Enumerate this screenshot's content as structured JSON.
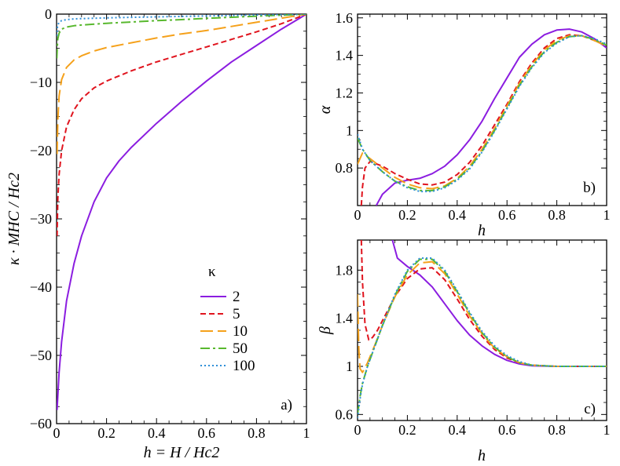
{
  "series_styles": [
    {
      "name": "2",
      "color": "#8B1DE0",
      "dash": "solid"
    },
    {
      "name": "5",
      "color": "#E0141E",
      "dash": "dashed"
    },
    {
      "name": "10",
      "color": "#F5A11B",
      "dash": "long-dashed"
    },
    {
      "name": "50",
      "color": "#58B82E",
      "dash": "dash-dot"
    },
    {
      "name": "100",
      "color": "#2E8FD8",
      "dash": "dotted"
    }
  ],
  "chart_data": [
    {
      "type": "line",
      "panel_label": "a)",
      "xlabel": "h = H / Hc2",
      "ylabel": "κ · MHC / Hc2",
      "xlim": [
        0,
        1
      ],
      "ylim": [
        -60,
        0
      ],
      "xticks": [
        "0",
        "0.2",
        "0.4",
        "0.6",
        "0.8",
        "1"
      ],
      "yticks": [
        "0",
        "−10",
        "−20",
        "−30",
        "−40",
        "−50",
        "−60"
      ],
      "legend_title": "κ",
      "legend_position": "center-right",
      "series": [
        {
          "name": "2",
          "x": [
            0.002,
            0.01,
            0.02,
            0.04,
            0.07,
            0.1,
            0.15,
            0.2,
            0.25,
            0.3,
            0.4,
            0.5,
            0.6,
            0.7,
            0.8,
            0.9,
            1.0
          ],
          "y": [
            -58,
            -52.5,
            -48,
            -42,
            -36.5,
            -32.5,
            -27.5,
            -24,
            -21.5,
            -19.5,
            -16,
            -12.8,
            -9.8,
            -7,
            -4.6,
            -2.2,
            0
          ]
        },
        {
          "name": "5",
          "x": [
            0.002,
            0.005,
            0.01,
            0.02,
            0.04,
            0.07,
            0.1,
            0.15,
            0.2,
            0.3,
            0.4,
            0.5,
            0.6,
            0.7,
            0.8,
            0.9,
            1.0
          ],
          "y": [
            -32.5,
            -27,
            -23.5,
            -20,
            -16.5,
            -14,
            -12.4,
            -10.8,
            -9.8,
            -8.3,
            -7,
            -5.9,
            -4.8,
            -3.7,
            -2.6,
            -1.4,
            0
          ]
        },
        {
          "name": "10",
          "x": [
            0.002,
            0.005,
            0.01,
            0.02,
            0.04,
            0.07,
            0.1,
            0.15,
            0.2,
            0.3,
            0.4,
            0.5,
            0.6,
            0.7,
            0.8,
            0.9,
            1.0
          ],
          "y": [
            -20.5,
            -15.5,
            -12,
            -9.6,
            -7.8,
            -6.7,
            -6.1,
            -5.4,
            -4.9,
            -4.2,
            -3.5,
            -2.9,
            -2.4,
            -1.8,
            -1.2,
            -0.6,
            0
          ]
        },
        {
          "name": "50",
          "x": [
            0.001,
            0.003,
            0.005,
            0.01,
            0.02,
            0.04,
            0.07,
            0.1,
            0.2,
            0.3,
            0.4,
            0.5,
            0.6,
            0.7,
            0.8,
            0.9,
            1.0
          ],
          "y": [
            -6.5,
            -4.6,
            -3.6,
            -2.8,
            -2.2,
            -1.9,
            -1.7,
            -1.6,
            -1.35,
            -1.15,
            -0.95,
            -0.8,
            -0.62,
            -0.46,
            -0.3,
            -0.15,
            0
          ]
        },
        {
          "name": "100",
          "x": [
            0.001,
            0.003,
            0.005,
            0.01,
            0.02,
            0.04,
            0.07,
            0.1,
            0.2,
            0.3,
            0.4,
            0.5,
            0.6,
            0.7,
            0.8,
            0.9,
            1.0
          ],
          "y": [
            -3.2,
            -2.0,
            -1.6,
            -1.2,
            -0.95,
            -0.8,
            -0.7,
            -0.65,
            -0.55,
            -0.47,
            -0.4,
            -0.33,
            -0.26,
            -0.19,
            -0.13,
            -0.06,
            0
          ]
        }
      ]
    },
    {
      "type": "line",
      "panel_label": "b)",
      "xlabel": "h",
      "ylabel": "α",
      "xlim": [
        0,
        1
      ],
      "ylim": [
        0.6,
        1.62
      ],
      "xticks": [
        "0",
        "0.2",
        "0.4",
        "0.6",
        "0.8",
        "1"
      ],
      "yticks": [
        "0.8",
        "1",
        "1.2",
        "1.4",
        "1.6"
      ],
      "series": [
        {
          "name": "2",
          "x": [
            0.075,
            0.1,
            0.15,
            0.2,
            0.25,
            0.3,
            0.35,
            0.4,
            0.45,
            0.5,
            0.55,
            0.6,
            0.65,
            0.7,
            0.75,
            0.8,
            0.85,
            0.9,
            0.95,
            1.0
          ],
          "y": [
            0.6,
            0.66,
            0.72,
            0.735,
            0.745,
            0.77,
            0.81,
            0.87,
            0.95,
            1.05,
            1.17,
            1.28,
            1.39,
            1.46,
            1.51,
            1.535,
            1.54,
            1.525,
            1.49,
            1.44
          ]
        },
        {
          "name": "5",
          "x": [
            0.015,
            0.02,
            0.03,
            0.05,
            0.08,
            0.1,
            0.15,
            0.2,
            0.25,
            0.3,
            0.35,
            0.4,
            0.45,
            0.5,
            0.55,
            0.6,
            0.65,
            0.7,
            0.75,
            0.8,
            0.85,
            0.9,
            0.95,
            1.0
          ],
          "y": [
            0.6,
            0.7,
            0.8,
            0.835,
            0.82,
            0.81,
            0.77,
            0.74,
            0.715,
            0.71,
            0.725,
            0.765,
            0.83,
            0.92,
            1.03,
            1.14,
            1.26,
            1.36,
            1.44,
            1.49,
            1.51,
            1.505,
            1.48,
            1.45
          ]
        },
        {
          "name": "10",
          "x": [
            0.0,
            0.02,
            0.05,
            0.1,
            0.15,
            0.2,
            0.25,
            0.3,
            0.35,
            0.4,
            0.45,
            0.5,
            0.55,
            0.6,
            0.65,
            0.7,
            0.75,
            0.8,
            0.85,
            0.9,
            0.95,
            1.0
          ],
          "y": [
            0.82,
            0.88,
            0.85,
            0.8,
            0.75,
            0.715,
            0.695,
            0.69,
            0.705,
            0.745,
            0.81,
            0.9,
            1.01,
            1.13,
            1.25,
            1.35,
            1.43,
            1.48,
            1.505,
            1.505,
            1.48,
            1.45
          ]
        },
        {
          "name": "50",
          "x": [
            0.0,
            0.02,
            0.05,
            0.1,
            0.15,
            0.2,
            0.25,
            0.3,
            0.35,
            0.4,
            0.45,
            0.5,
            0.55,
            0.6,
            0.65,
            0.7,
            0.75,
            0.8,
            0.85,
            0.9,
            0.95,
            1.0
          ],
          "y": [
            0.96,
            0.9,
            0.84,
            0.78,
            0.73,
            0.7,
            0.68,
            0.68,
            0.7,
            0.74,
            0.8,
            0.89,
            1.0,
            1.12,
            1.24,
            1.34,
            1.42,
            1.47,
            1.5,
            1.505,
            1.485,
            1.455
          ]
        },
        {
          "name": "100",
          "x": [
            0.0,
            0.02,
            0.05,
            0.1,
            0.15,
            0.2,
            0.25,
            0.3,
            0.35,
            0.4,
            0.45,
            0.5,
            0.55,
            0.6,
            0.65,
            0.7,
            0.75,
            0.8,
            0.85,
            0.9,
            0.95,
            1.0
          ],
          "y": [
            0.98,
            0.9,
            0.84,
            0.78,
            0.73,
            0.695,
            0.675,
            0.675,
            0.695,
            0.735,
            0.795,
            0.885,
            0.995,
            1.115,
            1.235,
            1.335,
            1.415,
            1.465,
            1.5,
            1.505,
            1.49,
            1.46
          ]
        }
      ]
    },
    {
      "type": "line",
      "panel_label": "c)",
      "xlabel": "h",
      "ylabel": "β",
      "xlim": [
        0,
        1
      ],
      "ylim": [
        0.55,
        2.05
      ],
      "xticks": [
        "0",
        "0.2",
        "0.4",
        "0.6",
        "0.8",
        "1"
      ],
      "yticks": [
        "0.6",
        "1",
        "1.4",
        "1.8"
      ],
      "series": [
        {
          "name": "2",
          "x": [
            0.14,
            0.16,
            0.2,
            0.25,
            0.3,
            0.35,
            0.4,
            0.45,
            0.5,
            0.55,
            0.6,
            0.65,
            0.7,
            0.8,
            0.9,
            1.0
          ],
          "y": [
            2.05,
            1.9,
            1.83,
            1.76,
            1.66,
            1.52,
            1.38,
            1.26,
            1.17,
            1.1,
            1.05,
            1.02,
            1.005,
            1.0,
            1.0,
            1.0
          ]
        },
        {
          "name": "5",
          "x": [
            0.015,
            0.02,
            0.03,
            0.045,
            0.06,
            0.08,
            0.1,
            0.15,
            0.2,
            0.25,
            0.3,
            0.35,
            0.4,
            0.45,
            0.5,
            0.55,
            0.6,
            0.65,
            0.7,
            0.8,
            0.9,
            1.0
          ],
          "y": [
            2.05,
            1.7,
            1.35,
            1.22,
            1.24,
            1.3,
            1.38,
            1.58,
            1.73,
            1.81,
            1.82,
            1.72,
            1.56,
            1.39,
            1.25,
            1.14,
            1.07,
            1.03,
            1.01,
            1.0,
            1.0,
            1.0
          ]
        },
        {
          "name": "10",
          "x": [
            0.0,
            0.005,
            0.01,
            0.02,
            0.04,
            0.07,
            0.1,
            0.15,
            0.2,
            0.25,
            0.3,
            0.35,
            0.4,
            0.45,
            0.5,
            0.55,
            0.6,
            0.65,
            0.7,
            0.8,
            0.9,
            1.0
          ],
          "y": [
            1.6,
            1.15,
            0.98,
            0.95,
            1.03,
            1.18,
            1.34,
            1.58,
            1.76,
            1.86,
            1.87,
            1.77,
            1.6,
            1.42,
            1.27,
            1.15,
            1.08,
            1.03,
            1.01,
            1.0,
            1.0,
            1.0
          ]
        },
        {
          "name": "50",
          "x": [
            0.0,
            0.01,
            0.02,
            0.04,
            0.07,
            0.1,
            0.15,
            0.2,
            0.25,
            0.3,
            0.35,
            0.4,
            0.45,
            0.5,
            0.55,
            0.6,
            0.65,
            0.7,
            0.8,
            0.9,
            1.0
          ],
          "y": [
            0.6,
            0.75,
            0.86,
            1.0,
            1.17,
            1.34,
            1.59,
            1.79,
            1.89,
            1.89,
            1.79,
            1.62,
            1.44,
            1.28,
            1.16,
            1.08,
            1.03,
            1.01,
            1.0,
            1.0,
            1.0
          ]
        },
        {
          "name": "100",
          "x": [
            0.0,
            0.01,
            0.02,
            0.04,
            0.07,
            0.1,
            0.15,
            0.2,
            0.25,
            0.3,
            0.35,
            0.4,
            0.45,
            0.5,
            0.55,
            0.6,
            0.65,
            0.7,
            0.8,
            0.9,
            1.0
          ],
          "y": [
            0.57,
            0.73,
            0.85,
            1.0,
            1.17,
            1.34,
            1.6,
            1.8,
            1.9,
            1.9,
            1.8,
            1.63,
            1.45,
            1.29,
            1.17,
            1.09,
            1.04,
            1.01,
            1.0,
            1.0,
            1.0
          ]
        }
      ]
    }
  ]
}
